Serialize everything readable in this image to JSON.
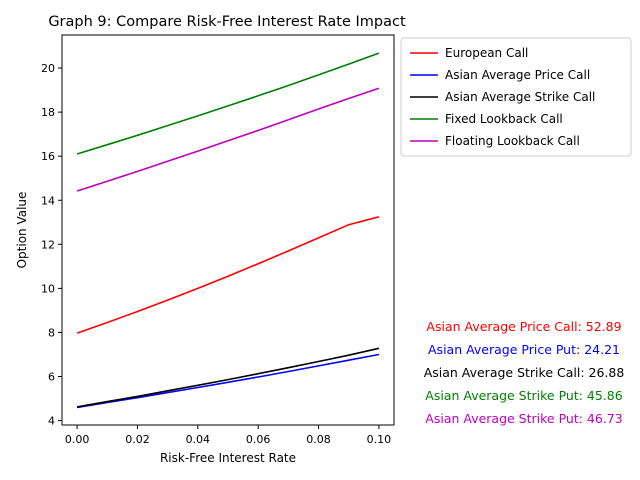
{
  "chart_data": {
    "type": "line",
    "title": "Graph 9: Compare Risk-Free Interest Rate Impact",
    "xlabel": "Risk-Free Interest Rate",
    "ylabel": "Option Value",
    "xlim": [
      -0.005,
      0.105
    ],
    "ylim": [
      3.8,
      21.5
    ],
    "grid": false,
    "legend_position": "upper-right-outside",
    "x": [
      0.0,
      0.01,
      0.02,
      0.03,
      0.04,
      0.05,
      0.06,
      0.07,
      0.08,
      0.09,
      0.1
    ],
    "xticks": [
      0.0,
      0.02,
      0.04,
      0.06,
      0.08,
      0.1
    ],
    "xtick_labels": [
      "0.00",
      "0.02",
      "0.04",
      "0.06",
      "0.08",
      "0.10"
    ],
    "yticks": [
      4,
      6,
      8,
      10,
      12,
      14,
      16,
      18,
      20
    ],
    "ytick_labels": [
      "4",
      "6",
      "8",
      "10",
      "12",
      "14",
      "16",
      "18",
      "20"
    ],
    "series": [
      {
        "name": "European Call",
        "color": "#ff0000",
        "values": [
          7.97,
          8.45,
          8.95,
          9.47,
          10.0,
          10.55,
          11.12,
          11.7,
          12.29,
          12.89,
          13.25
        ]
      },
      {
        "name": "Asian Average Price Call",
        "color": "#0000ff",
        "values": [
          4.6,
          4.82,
          5.04,
          5.27,
          5.5,
          5.74,
          5.98,
          6.23,
          6.48,
          6.74,
          7.0
        ]
      },
      {
        "name": "Asian Average Strike Call",
        "color": "#000000",
        "values": [
          4.62,
          4.86,
          5.1,
          5.35,
          5.6,
          5.86,
          6.13,
          6.4,
          6.68,
          6.97,
          7.28
        ]
      },
      {
        "name": "Fixed Lookback Call",
        "color": "#008000",
        "values": [
          16.1,
          16.52,
          16.95,
          17.39,
          17.83,
          18.28,
          18.74,
          19.21,
          19.69,
          20.18,
          20.68
        ]
      },
      {
        "name": "Floating Lookback Call",
        "color": "#bf00bf",
        "values": [
          14.42,
          14.86,
          15.31,
          15.77,
          16.23,
          16.7,
          17.17,
          17.65,
          18.14,
          18.62,
          19.08
        ]
      }
    ],
    "annotations": [
      {
        "text": "Asian Average Price Call: 52.89",
        "color": "#ff0000"
      },
      {
        "text": "Asian Average Price Put: 24.21",
        "color": "#0000ff"
      },
      {
        "text": "Asian Average Strike Call: 26.88",
        "color": "#000000"
      },
      {
        "text": "Asian Average Strike Put: 45.86",
        "color": "#008000"
      },
      {
        "text": "Asian Average Strike Put: 46.73",
        "color": "#bf00bf"
      }
    ]
  }
}
